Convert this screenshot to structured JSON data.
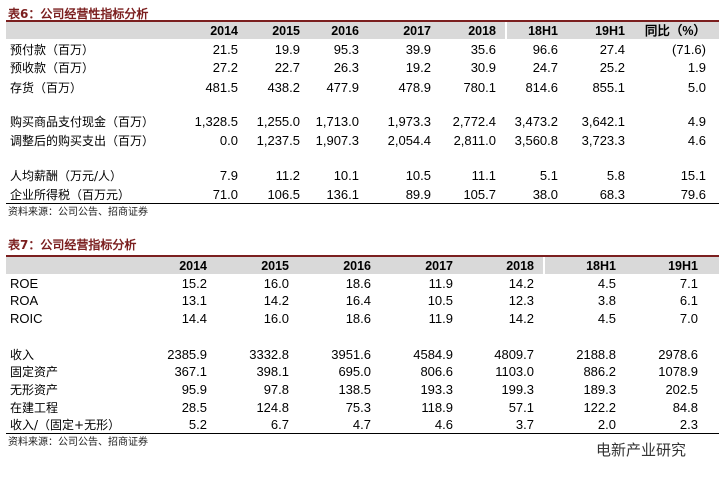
{
  "tables": [
    {
      "title": "表6：公司经营性指标分析",
      "header": [
        "2014",
        "2015",
        "2016",
        "2017",
        "2018",
        "18H1",
        "19H1",
        "同比（%）"
      ],
      "rows": [
        [
          "预付款（百万）",
          "21.5",
          "19.9",
          "95.3",
          "39.9",
          "35.6",
          "96.6",
          "27.4",
          "(71.6)"
        ],
        [
          "预收款（百万）",
          "27.2",
          "22.7",
          "26.3",
          "19.2",
          "30.9",
          "24.7",
          "25.2",
          "1.9"
        ],
        [
          "存货（百万）",
          "481.5",
          "438.2",
          "477.9",
          "478.9",
          "780.1",
          "814.6",
          "855.1",
          "5.0"
        ],
        [
          "购买商品支付现金（百万）",
          "1,328.5",
          "1,255.0",
          "1,713.0",
          "1,973.3",
          "2,772.4",
          "3,473.2",
          "3,642.1",
          "4.9"
        ],
        [
          "调整后的购买支出（百万）",
          "0.0",
          "1,237.5",
          "1,907.3",
          "2,054.4",
          "2,811.0",
          "3,560.8",
          "3,723.3",
          "4.6"
        ],
        [
          "人均薪酬（万元/人）",
          "7.9",
          "11.2",
          "10.1",
          "10.5",
          "11.1",
          "5.1",
          "5.8",
          "15.1"
        ],
        [
          "企业所得税（百万元）",
          "71.0",
          "106.5",
          "136.1",
          "89.9",
          "105.7",
          "38.0",
          "68.3",
          "79.6"
        ]
      ],
      "source": "资料来源：公司公告、招商证券"
    },
    {
      "title": "表7：公司经营指标分析",
      "header": [
        "2014",
        "2015",
        "2016",
        "2017",
        "2018",
        "18H1",
        "19H1"
      ],
      "rows": [
        [
          "ROE",
          "15.2",
          "16.0",
          "18.6",
          "11.9",
          "14.2",
          "4.5",
          "7.1"
        ],
        [
          "ROA",
          "13.1",
          "14.2",
          "16.4",
          "10.5",
          "12.3",
          "3.8",
          "6.1"
        ],
        [
          "ROIC",
          "14.4",
          "16.0",
          "18.6",
          "11.9",
          "14.2",
          "4.5",
          "7.0"
        ],
        [
          "收入",
          "2385.9",
          "3332.8",
          "3951.6",
          "4584.9",
          "4809.7",
          "2188.8",
          "2978.6"
        ],
        [
          "固定资产",
          "367.1",
          "398.1",
          "695.0",
          "806.6",
          "1103.0",
          "886.2",
          "1078.9"
        ],
        [
          "无形资产",
          "95.9",
          "97.8",
          "138.5",
          "193.3",
          "199.3",
          "189.3",
          "202.5"
        ],
        [
          "在建工程",
          "28.5",
          "124.8",
          "75.3",
          "118.9",
          "57.1",
          "122.2",
          "84.8"
        ],
        [
          "收入/（固定+无形）",
          "5.2",
          "6.7",
          "4.7",
          "4.6",
          "3.7",
          "2.0",
          "2.3"
        ]
      ],
      "source": "资料来源：公司公告、招商证券"
    }
  ],
  "watermark": "电新产业研究"
}
